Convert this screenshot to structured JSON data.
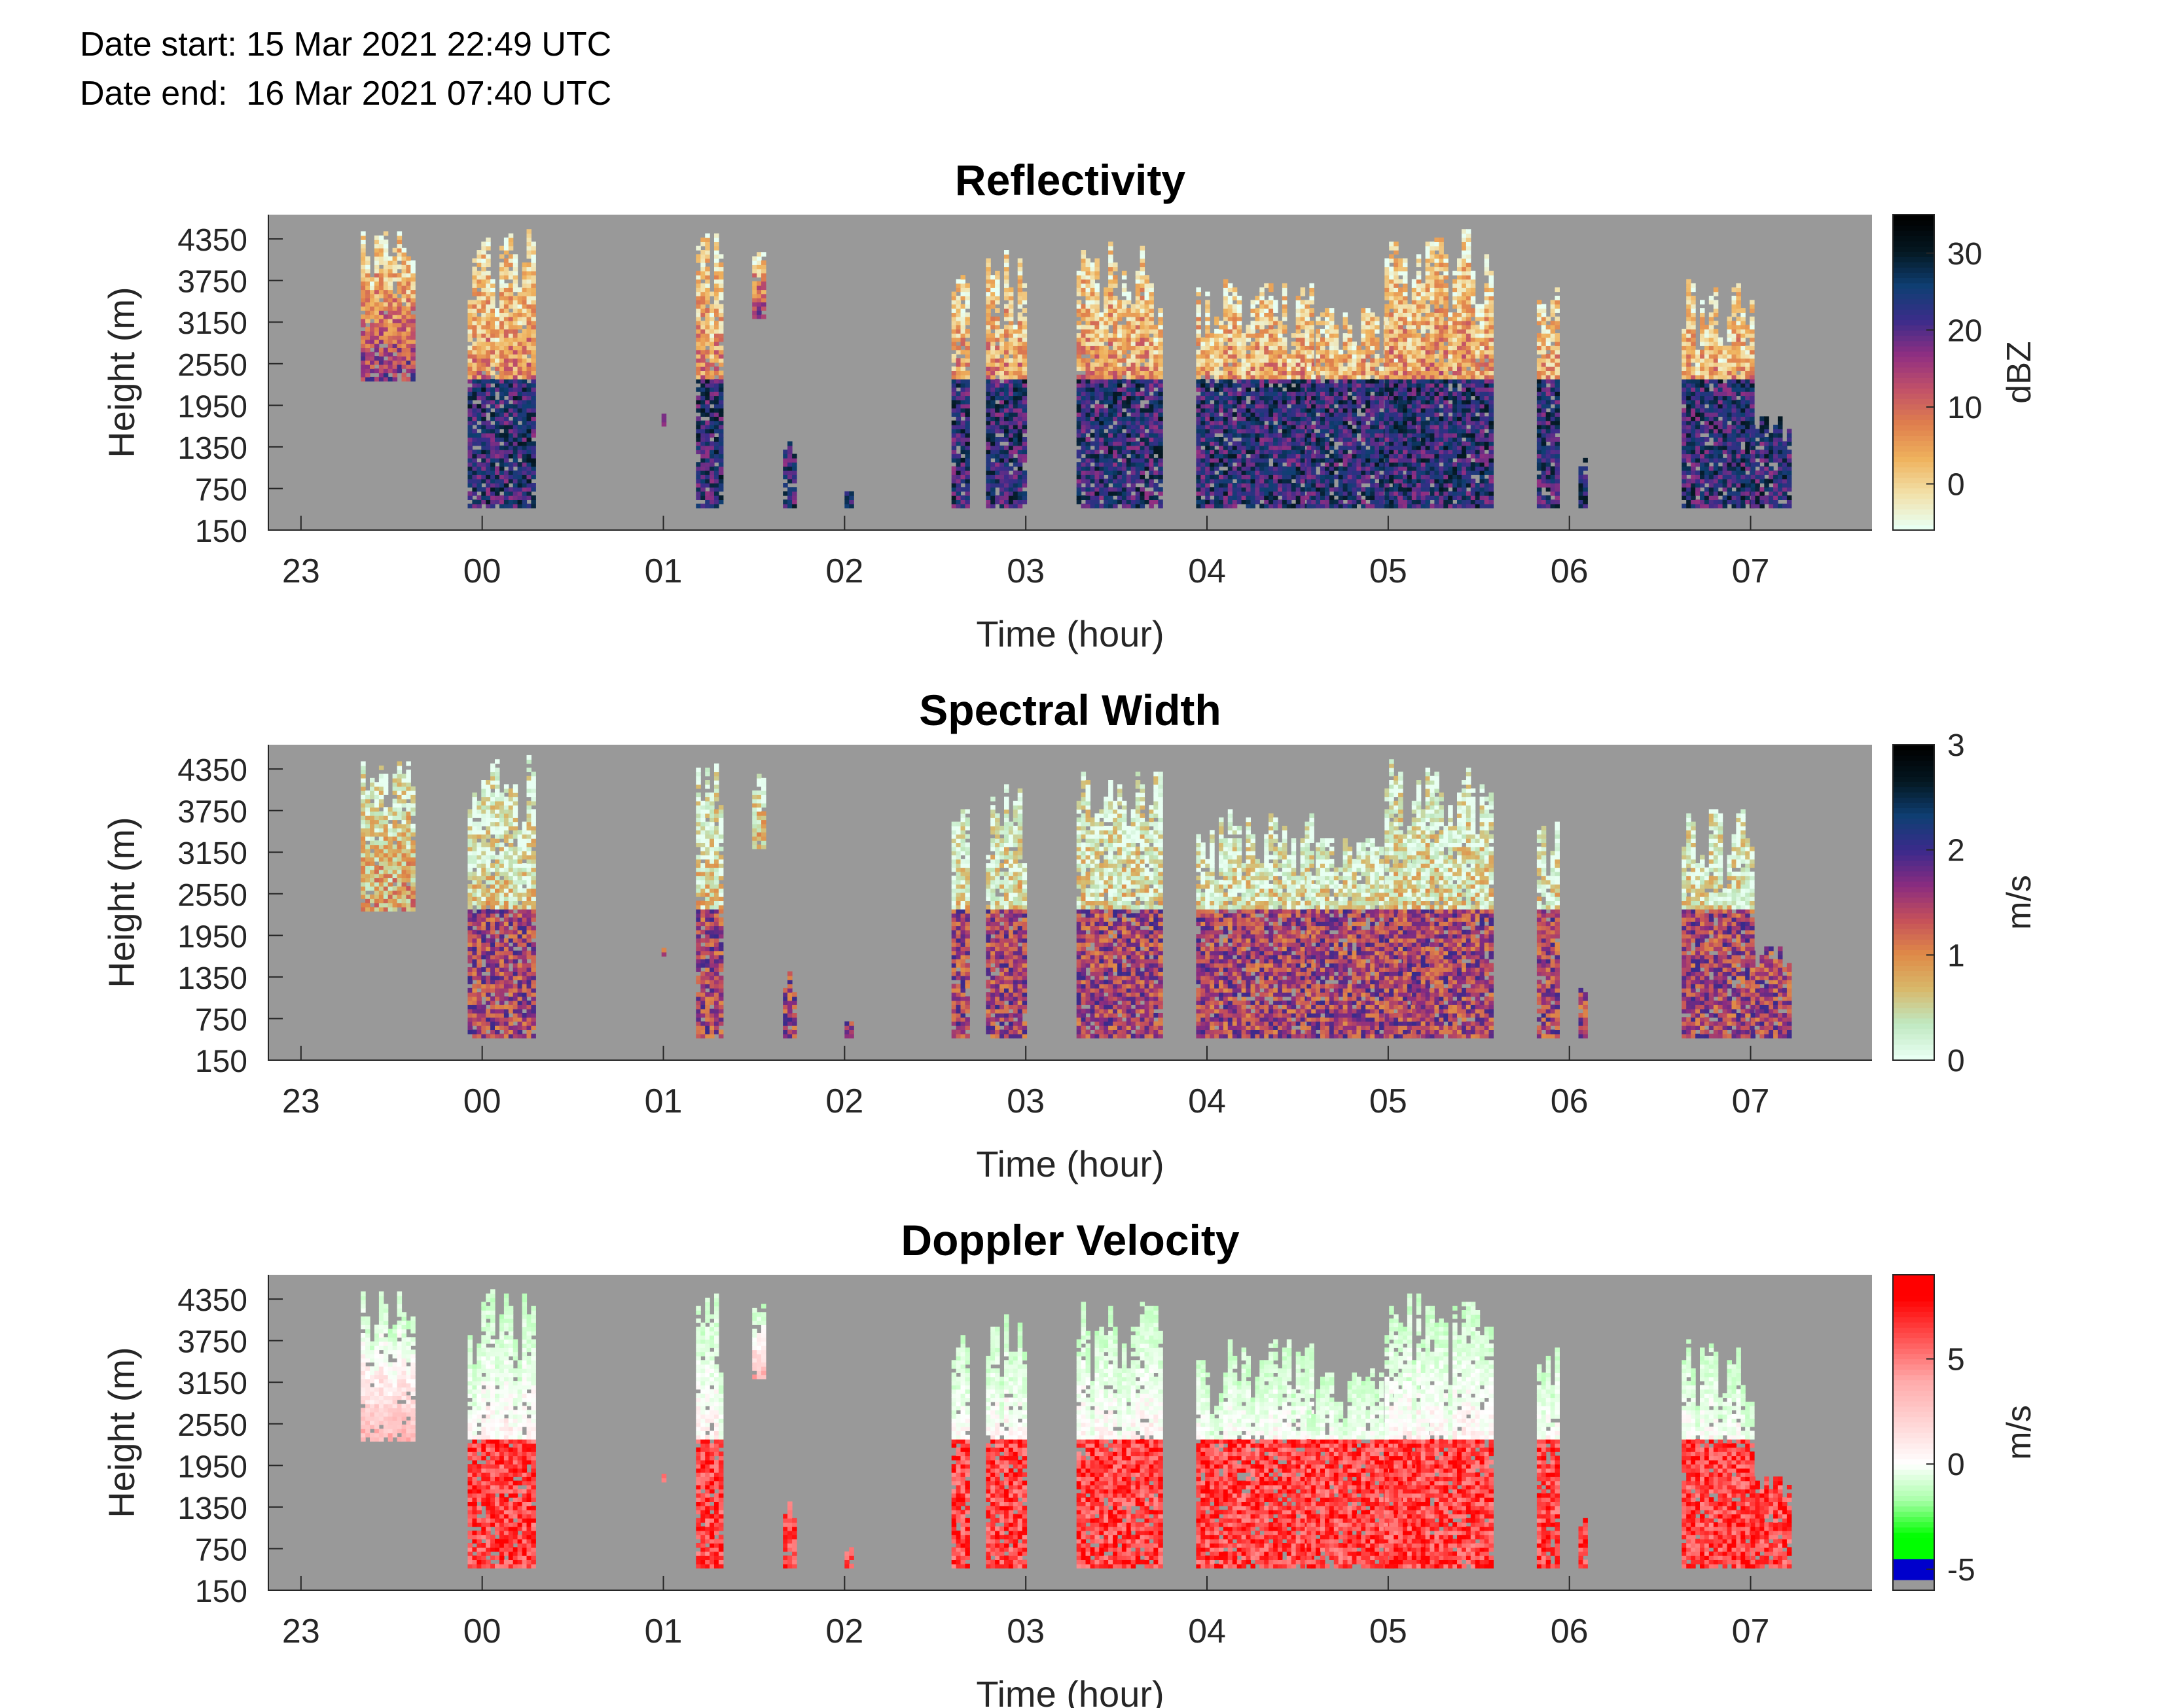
{
  "header": {
    "date_start_label": "Date start:",
    "date_start_value": "15 Mar 2021 22:49 UTC",
    "date_end_label": "Date end:",
    "date_end_value": "16 Mar 2021 07:40 UTC"
  },
  "colors": {
    "no_data_gray": "#999999",
    "reflectivity_map": [
      "#e8fff2",
      "#f2e0a8",
      "#efb25d",
      "#df7f4d",
      "#c25168",
      "#902f82",
      "#3b2c8a",
      "#0f3f73",
      "#041822",
      "#000000"
    ],
    "width_map": [
      "#e8fff2",
      "#bfe8c0",
      "#d8b86a",
      "#df8a47",
      "#c5505a",
      "#8a2c80",
      "#3b2a8c",
      "#0f3f73",
      "#041822",
      "#000000"
    ],
    "velocity_map": [
      "#a0a0a0",
      "#0000cc",
      "#00ff00",
      "#a8ffa8",
      "#ffffff",
      "#ffb0b0",
      "#ff0000"
    ]
  },
  "chart_data": [
    {
      "type": "heatmap",
      "title": "Reflectivity",
      "xlabel": "Time (hour)",
      "ylabel": "Height (m)",
      "x_tick_labels": [
        "23",
        "00",
        "01",
        "02",
        "03",
        "04",
        "05",
        "06",
        "07"
      ],
      "x_ticks_hours": [
        23,
        24,
        25,
        26,
        27,
        28,
        29,
        30,
        31
      ],
      "xlim_hours": [
        22.82,
        31.67
      ],
      "y_tick_labels": [
        "4350",
        "3750",
        "3150",
        "2550",
        "1950",
        "1350",
        "750",
        "150"
      ],
      "y_ticks": [
        4350,
        3750,
        3150,
        2550,
        1950,
        1350,
        750,
        150
      ],
      "ylim": [
        150,
        4700
      ],
      "colorbar": {
        "label": "dBZ",
        "ticks": [
          0,
          10,
          20,
          30
        ],
        "range": [
          -6,
          35
        ]
      },
      "colormap": "reflectivity_map",
      "grid": false,
      "echo_columns": [
        {
          "start": 23.33,
          "end": 23.62,
          "top": 4450,
          "bottom": 2300
        },
        {
          "start": 23.92,
          "end": 24.28,
          "top": 4500,
          "bottom": 470
        },
        {
          "start": 24.99,
          "end": 25.01,
          "top": 1800,
          "bottom": 1650
        },
        {
          "start": 25.18,
          "end": 25.32,
          "top": 4400,
          "bottom": 470
        },
        {
          "start": 25.49,
          "end": 25.54,
          "top": 4250,
          "bottom": 3200
        },
        {
          "start": 25.66,
          "end": 25.71,
          "top": 1400,
          "bottom": 470
        },
        {
          "start": 26.0,
          "end": 26.04,
          "top": 720,
          "bottom": 470
        },
        {
          "start": 26.59,
          "end": 26.67,
          "top": 3800,
          "bottom": 470
        },
        {
          "start": 26.78,
          "end": 26.98,
          "top": 4150,
          "bottom": 470
        },
        {
          "start": 27.28,
          "end": 27.74,
          "top": 4300,
          "bottom": 470
        },
        {
          "start": 27.94,
          "end": 28.58,
          "top": 3750,
          "bottom": 470
        },
        {
          "start": 28.55,
          "end": 29.2,
          "top": 3350,
          "bottom": 470
        },
        {
          "start": 28.98,
          "end": 29.56,
          "top": 4450,
          "bottom": 470
        },
        {
          "start": 29.82,
          "end": 29.92,
          "top": 3650,
          "bottom": 470
        },
        {
          "start": 30.05,
          "end": 30.09,
          "top": 1250,
          "bottom": 470
        },
        {
          "start": 30.62,
          "end": 31.0,
          "top": 3750,
          "bottom": 470
        },
        {
          "start": 31.0,
          "end": 31.22,
          "top": 1800,
          "bottom": 470
        }
      ]
    },
    {
      "type": "heatmap",
      "title": "Spectral Width",
      "xlabel": "Time (hour)",
      "ylabel": "Height (m)",
      "x_tick_labels": [
        "23",
        "00",
        "01",
        "02",
        "03",
        "04",
        "05",
        "06",
        "07"
      ],
      "x_ticks_hours": [
        23,
        24,
        25,
        26,
        27,
        28,
        29,
        30,
        31
      ],
      "xlim_hours": [
        22.82,
        31.67
      ],
      "y_tick_labels": [
        "4350",
        "3750",
        "3150",
        "2550",
        "1950",
        "1350",
        "750",
        "150"
      ],
      "y_ticks": [
        4350,
        3750,
        3150,
        2550,
        1950,
        1350,
        750,
        150
      ],
      "ylim": [
        150,
        4700
      ],
      "colorbar": {
        "label": "m/s",
        "ticks": [
          0,
          1,
          2,
          3
        ],
        "range": [
          0,
          3
        ]
      },
      "colormap": "width_map",
      "grid": false
    },
    {
      "type": "heatmap",
      "title": "Doppler Velocity",
      "xlabel": "Time (hour)",
      "ylabel": "Height (m)",
      "x_tick_labels": [
        "23",
        "00",
        "01",
        "02",
        "03",
        "04",
        "05",
        "06",
        "07"
      ],
      "x_ticks_hours": [
        23,
        24,
        25,
        26,
        27,
        28,
        29,
        30,
        31
      ],
      "xlim_hours": [
        22.82,
        31.67
      ],
      "y_tick_labels": [
        "4350",
        "3750",
        "3150",
        "2550",
        "1950",
        "1350",
        "750",
        "150"
      ],
      "y_ticks": [
        4350,
        3750,
        3150,
        2550,
        1950,
        1350,
        750,
        150
      ],
      "ylim": [
        150,
        4700
      ],
      "colorbar": {
        "label": "m/s",
        "ticks": [
          -5,
          0,
          5
        ],
        "range": [
          -6,
          9
        ]
      },
      "colormap": "velocity_map",
      "grid": false
    }
  ]
}
